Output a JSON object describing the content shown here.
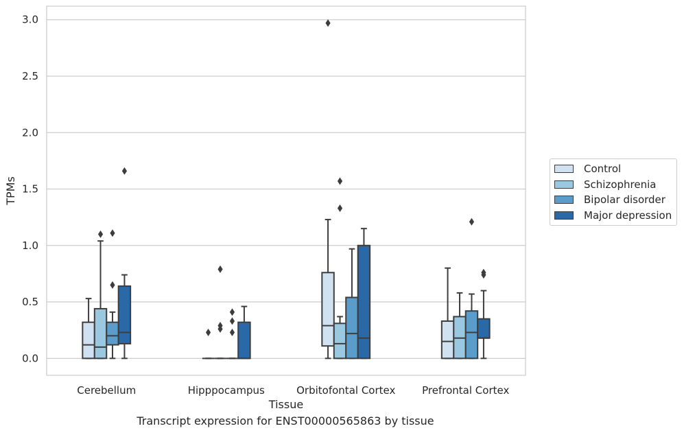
{
  "chart_data": {
    "type": "box",
    "title": "",
    "xlabel": "Tissue",
    "ylabel": "TPMs",
    "caption": "Transcript expression for ENST00000565863 by tissue",
    "ylim": [
      -0.15,
      3.12
    ],
    "yticks": [
      "0.0",
      "0.5",
      "1.0",
      "1.5",
      "2.0",
      "2.5",
      "3.0"
    ],
    "grid": "horizontal",
    "legend_position": "right",
    "categories": [
      "Cerebellum",
      "Hipppocampus",
      "Orbitofontal Cortex",
      "Prefrontal Cortex"
    ],
    "series": [
      {
        "name": "Control",
        "color": "#d0e2f2",
        "boxes": [
          {
            "min": 0.0,
            "q1": 0.0,
            "median": 0.12,
            "q3": 0.32,
            "max": 0.53,
            "outliers": []
          },
          {
            "min": 0.0,
            "q1": 0.0,
            "median": 0.0,
            "q3": 0.0,
            "max": 0.0,
            "outliers": [
              0.23
            ]
          },
          {
            "min": 0.0,
            "q1": 0.11,
            "median": 0.29,
            "q3": 0.76,
            "max": 1.23,
            "outliers": [
              2.97
            ]
          },
          {
            "min": 0.0,
            "q1": 0.0,
            "median": 0.15,
            "q3": 0.33,
            "max": 0.8,
            "outliers": []
          }
        ]
      },
      {
        "name": "Schizophrenia",
        "color": "#9ac8e0",
        "boxes": [
          {
            "min": 0.0,
            "q1": 0.0,
            "median": 0.1,
            "q3": 0.44,
            "max": 1.04,
            "outliers": [
              1.1
            ]
          },
          {
            "min": 0.0,
            "q1": 0.0,
            "median": 0.0,
            "q3": 0.0,
            "max": 0.0,
            "outliers": [
              0.79,
              0.29,
              0.26
            ]
          },
          {
            "min": 0.0,
            "q1": 0.0,
            "median": 0.13,
            "q3": 0.31,
            "max": 0.37,
            "outliers": [
              1.57,
              1.33
            ]
          },
          {
            "min": 0.0,
            "q1": 0.0,
            "median": 0.18,
            "q3": 0.37,
            "max": 0.58,
            "outliers": []
          }
        ]
      },
      {
        "name": "Bipolar disorder",
        "color": "#5a9dcb",
        "boxes": [
          {
            "min": 0.0,
            "q1": 0.12,
            "median": 0.2,
            "q3": 0.32,
            "max": 0.41,
            "outliers": [
              1.11,
              0.65
            ]
          },
          {
            "min": 0.0,
            "q1": 0.0,
            "median": 0.0,
            "q3": 0.0,
            "max": 0.0,
            "outliers": [
              0.41,
              0.33,
              0.23
            ]
          },
          {
            "min": 0.0,
            "q1": 0.0,
            "median": 0.22,
            "q3": 0.54,
            "max": 0.97,
            "outliers": []
          },
          {
            "min": 0.0,
            "q1": 0.0,
            "median": 0.23,
            "q3": 0.42,
            "max": 0.57,
            "outliers": [
              1.21
            ]
          }
        ]
      },
      {
        "name": "Major depression",
        "color": "#2a69a8",
        "boxes": [
          {
            "min": 0.0,
            "q1": 0.13,
            "median": 0.23,
            "q3": 0.64,
            "max": 0.74,
            "outliers": [
              1.66
            ]
          },
          {
            "min": 0.0,
            "q1": 0.0,
            "median": 0.0,
            "q3": 0.32,
            "max": 0.46,
            "outliers": []
          },
          {
            "min": 0.0,
            "q1": 0.0,
            "median": 0.18,
            "q3": 1.0,
            "max": 1.15,
            "outliers": []
          },
          {
            "min": 0.0,
            "q1": 0.18,
            "median": 0.18,
            "q3": 0.35,
            "max": 0.6,
            "outliers": [
              0.76,
              0.74
            ]
          }
        ]
      }
    ]
  }
}
